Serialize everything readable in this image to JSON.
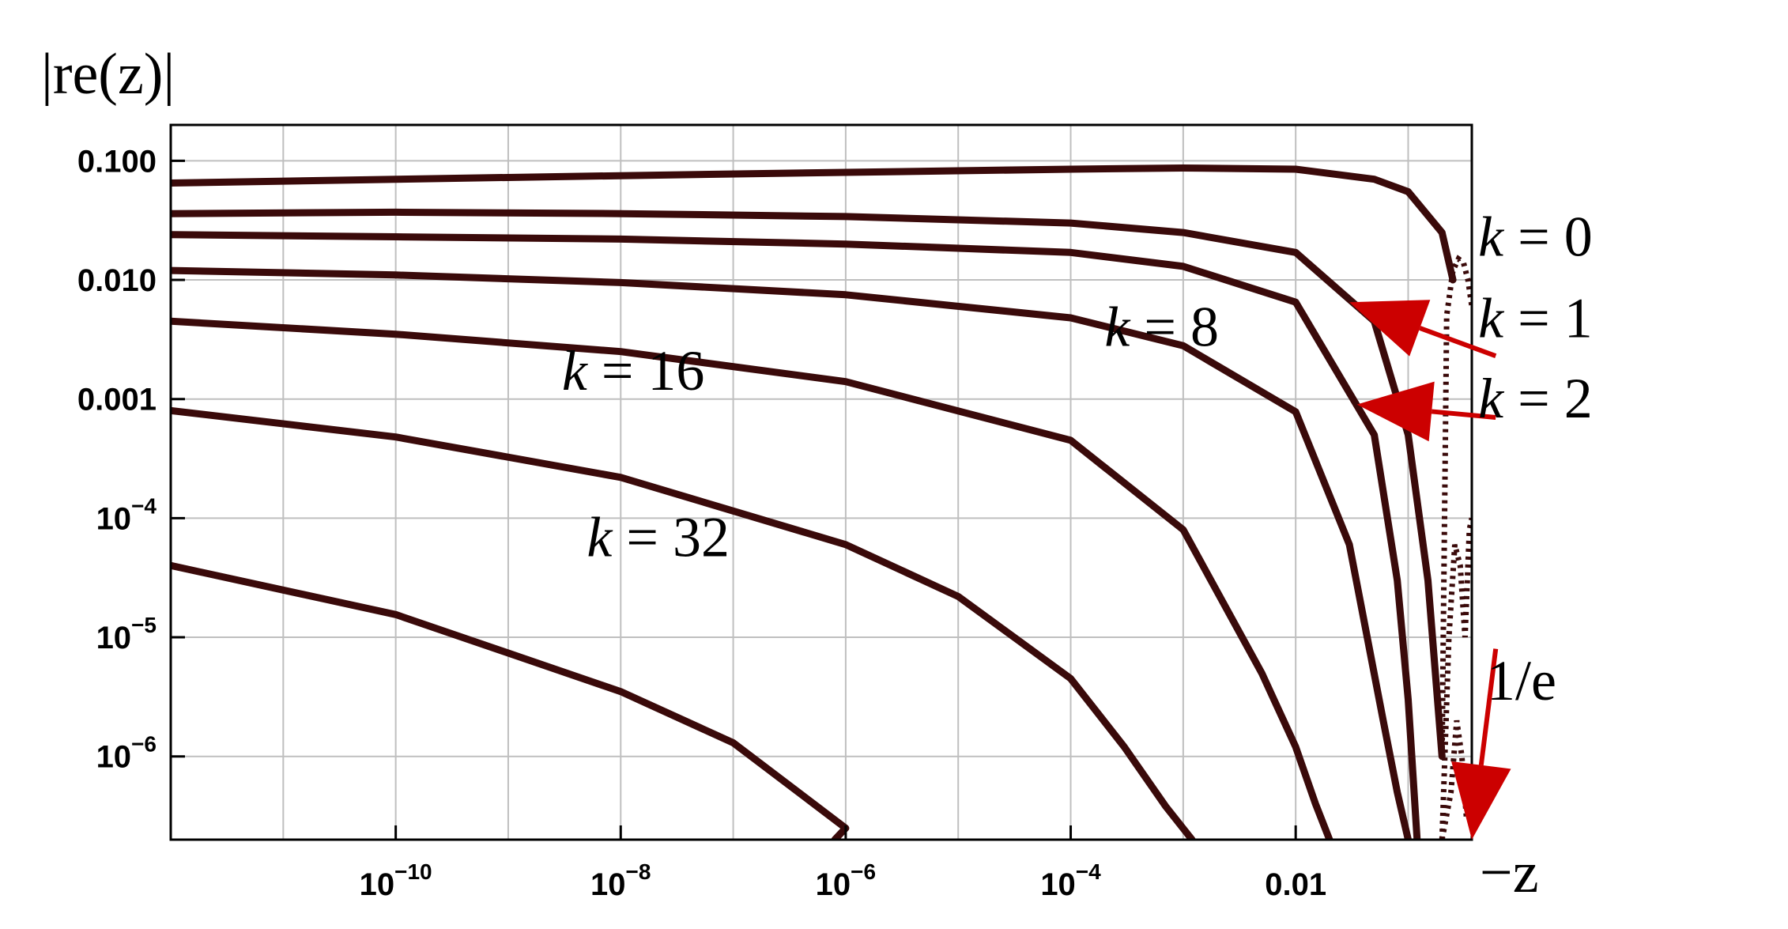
{
  "chart_data": {
    "type": "line",
    "title": "",
    "ylabel": "|re(z)|",
    "xlabel": "−z",
    "x_scale": "log",
    "y_scale": "log",
    "xlim": [
      1e-12,
      0.3679
    ],
    "ylim": [
      2e-07,
      0.2
    ],
    "grid": true,
    "legend": "none",
    "x_ticks": [
      {
        "value": 1e-10,
        "base": "10",
        "exp": "−10"
      },
      {
        "value": 1e-08,
        "base": "10",
        "exp": "−8"
      },
      {
        "value": 1e-06,
        "base": "10",
        "exp": "−6"
      },
      {
        "value": 0.0001,
        "base": "10",
        "exp": "−4"
      },
      {
        "value": 0.01,
        "label": "0.01"
      }
    ],
    "y_ticks": [
      {
        "value": 0.1,
        "label": "0.100"
      },
      {
        "value": 0.01,
        "label": "0.010"
      },
      {
        "value": 0.001,
        "label": "0.001"
      },
      {
        "value": 0.0001,
        "base": "10",
        "exp": "−4"
      },
      {
        "value": 1e-05,
        "base": "10",
        "exp": "−5"
      },
      {
        "value": 1e-06,
        "base": "10",
        "exp": "−6"
      }
    ],
    "series": [
      {
        "name": "k = 0",
        "x": [
          1e-12,
          1e-10,
          1e-08,
          1e-06,
          0.0001,
          0.001,
          0.01,
          0.05,
          0.1,
          0.2,
          0.25
        ],
        "y": [
          0.065,
          0.07,
          0.075,
          0.08,
          0.085,
          0.087,
          0.085,
          0.07,
          0.055,
          0.025,
          0.01
        ]
      },
      {
        "name": "k = 1",
        "x": [
          1e-12,
          1e-10,
          1e-08,
          1e-06,
          0.0001,
          0.001,
          0.01,
          0.05,
          0.1,
          0.15,
          0.2
        ],
        "y": [
          0.036,
          0.037,
          0.036,
          0.034,
          0.03,
          0.025,
          0.017,
          0.0045,
          0.0005,
          3e-05,
          1e-06
        ]
      },
      {
        "name": "k = 2",
        "x": [
          1e-12,
          1e-10,
          1e-08,
          1e-06,
          0.0001,
          0.001,
          0.01,
          0.05,
          0.08,
          0.1,
          0.12
        ],
        "y": [
          0.024,
          0.023,
          0.022,
          0.02,
          0.017,
          0.013,
          0.0065,
          0.0005,
          3e-05,
          3e-06,
          2e-07
        ]
      },
      {
        "name": "k = 8",
        "x": [
          1e-12,
          1e-10,
          1e-08,
          1e-06,
          0.0001,
          0.001,
          0.01,
          0.03,
          0.06,
          0.08,
          0.1
        ],
        "y": [
          0.012,
          0.011,
          0.0095,
          0.0075,
          0.0048,
          0.0028,
          0.00078,
          6e-05,
          2e-06,
          5e-07,
          2e-07
        ]
      },
      {
        "name": "k = 16",
        "x": [
          1e-12,
          1e-10,
          1e-08,
          1e-06,
          0.0001,
          0.001,
          0.005,
          0.01,
          0.015,
          0.02
        ],
        "y": [
          0.0045,
          0.0035,
          0.0025,
          0.0014,
          0.00045,
          8e-05,
          5e-06,
          1.2e-06,
          4e-07,
          2e-07
        ]
      },
      {
        "name": "k = 32",
        "x": [
          1e-12,
          1e-10,
          1e-08,
          1e-06,
          1e-05,
          0.0001,
          0.0003,
          0.0007,
          0.0012
        ],
        "y": [
          0.0008,
          0.00048,
          0.00022,
          6e-05,
          2.2e-05,
          4.5e-06,
          1.2e-06,
          3.8e-07,
          2e-07
        ]
      },
      {
        "name": "",
        "x": [
          1e-12,
          1e-10,
          1e-08,
          1e-07,
          1e-06,
          8e-07
        ],
        "y": [
          4e-05,
          1.55e-05,
          3.5e-06,
          1.3e-06,
          2.5e-07,
          2e-07
        ]
      }
    ],
    "oscillations": [
      {
        "x": [
          0.2,
          0.22,
          0.25,
          0.28,
          0.31,
          0.34,
          0.3679
        ],
        "y": [
          1e-06,
          0.005,
          0.012,
          0.015,
          0.014,
          0.01,
          0.006
        ]
      },
      {
        "x": [
          0.2,
          0.23,
          0.26,
          0.29,
          0.32,
          0.35,
          0.3679
        ],
        "y": [
          2e-07,
          1e-05,
          6e-05,
          4e-05,
          1e-05,
          8e-05,
          0.0001
        ]
      },
      {
        "x": [
          0.2,
          0.24,
          0.27,
          0.3,
          0.33,
          0.3679
        ],
        "y": [
          2e-07,
          5e-07,
          2e-06,
          1e-06,
          3e-07,
          4e-07
        ]
      }
    ],
    "annotations": [
      {
        "id": "k0",
        "prefix": "k",
        "text": " = 0",
        "x": 0.42,
        "y": 0.016
      },
      {
        "id": "k1",
        "prefix": "k",
        "text": " = 1",
        "x": 0.42,
        "y": 0.0033
      },
      {
        "id": "k2",
        "prefix": "k",
        "text": " = 2",
        "x": 0.42,
        "y": 0.0007
      },
      {
        "id": "k8",
        "prefix": "k",
        "text": " = 8",
        "x": 0.0002,
        "y": 0.0028
      },
      {
        "id": "k16",
        "prefix": "k",
        "text": " = 16",
        "x": 3e-09,
        "y": 0.0012
      },
      {
        "id": "k32",
        "prefix": "k",
        "text": " = 32",
        "x": 5e-09,
        "y": 4.8e-05
      },
      {
        "id": "inv_e",
        "prefix": "",
        "text": "1/e",
        "x": 0.5,
        "y": 3e-06
      }
    ],
    "arrows": [
      {
        "from": [
          0.6,
          0.0023
        ],
        "to": [
          0.03,
          0.0065
        ]
      },
      {
        "from": [
          0.6,
          0.0007
        ],
        "to": [
          0.035,
          0.0009
        ]
      },
      {
        "from": [
          0.6,
          8e-06
        ],
        "to": [
          0.3679,
          2e-07
        ]
      }
    ],
    "colors": {
      "curve": "#3a0a0a",
      "arrow": "#cc0000",
      "grid": "#bfbfbf",
      "frame": "#000000"
    }
  }
}
